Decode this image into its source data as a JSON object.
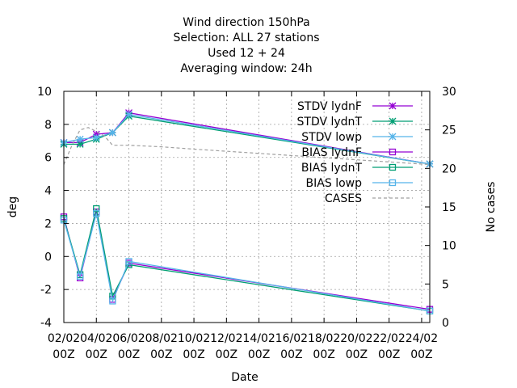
{
  "chart_data": {
    "type": "line",
    "title": [
      "Wind direction 150hPa",
      "Selection: ALL     27 stations",
      "Used  12 + 24",
      "Averaging window: 24h"
    ],
    "xlabel": "Date",
    "ylabel": "deg",
    "y2label": "No cases",
    "ylim": [
      -4,
      10
    ],
    "y2lim": [
      0,
      30
    ],
    "xlim": [
      "02/02 00Z",
      "24/02 12Z"
    ],
    "x_ticks": [
      [
        "02/02",
        "00Z"
      ],
      [
        "04/02",
        "00Z"
      ],
      [
        "06/02",
        "00Z"
      ],
      [
        "08/02",
        "00Z"
      ],
      [
        "10/02",
        "00Z"
      ],
      [
        "12/02",
        "00Z"
      ],
      [
        "14/02",
        "00Z"
      ],
      [
        "16/02",
        "00Z"
      ],
      [
        "18/02",
        "00Z"
      ],
      [
        "20/02",
        "00Z"
      ],
      [
        "22/02",
        "00Z"
      ],
      [
        "24/02",
        "00Z"
      ]
    ],
    "y_ticks": [
      -4,
      -2,
      0,
      2,
      4,
      6,
      8,
      10
    ],
    "y2_ticks": [
      0,
      5,
      10,
      15,
      20,
      25,
      30
    ],
    "grid": true,
    "legend_position": "top-right",
    "x": [
      "02/02 00Z",
      "03/02 00Z",
      "04/02 00Z",
      "05/02 00Z",
      "06/02 00Z",
      "24/02 12Z"
    ],
    "series": [
      {
        "name": "STDV lydnF",
        "axis": "y",
        "color": "#9400d3",
        "marker": "star",
        "values": [
          6.9,
          6.9,
          7.4,
          7.5,
          8.7,
          5.6
        ]
      },
      {
        "name": "STDV lydnT",
        "axis": "y",
        "color": "#009e73",
        "marker": "star",
        "values": [
          6.8,
          6.8,
          7.1,
          7.5,
          8.5,
          5.6
        ]
      },
      {
        "name": "STDV lowp",
        "axis": "y",
        "color": "#56b4e9",
        "marker": "star",
        "values": [
          6.9,
          7.1,
          7.2,
          7.5,
          8.6,
          5.6
        ]
      },
      {
        "name": "BIAS lydnF",
        "axis": "y",
        "color": "#9400d3",
        "marker": "square",
        "values": [
          2.4,
          -1.3,
          2.7,
          -2.6,
          -0.4,
          -3.2
        ]
      },
      {
        "name": "BIAS lydnT",
        "axis": "y",
        "color": "#009e73",
        "marker": "square",
        "values": [
          2.3,
          -1.1,
          2.9,
          -2.4,
          -0.5,
          -3.3
        ]
      },
      {
        "name": "BIAS lowp",
        "axis": "y",
        "color": "#56b4e9",
        "marker": "square",
        "values": [
          2.2,
          -1.2,
          2.6,
          -2.7,
          -0.3,
          -3.3
        ]
      },
      {
        "name": "CASES",
        "axis": "y2",
        "color": "#a0a0a0",
        "dash": true,
        "x": [
          "02/02 00Z",
          "02/02 12Z",
          "03/02 00Z",
          "03/02 12Z",
          "04/02 00Z",
          "04/02 12Z",
          "05/02 00Z",
          "06/02 00Z",
          "08/02 00Z",
          "10/02 00Z",
          "24/02 12Z"
        ],
        "values": [
          20.5,
          23.0,
          25.0,
          25.3,
          24.8,
          24.2,
          23.0,
          23.0,
          22.8,
          22.5,
          20.5
        ]
      }
    ]
  }
}
